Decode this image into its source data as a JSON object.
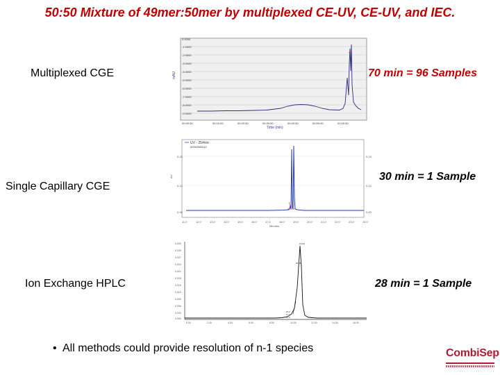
{
  "title": "50:50 Mixture of 49mer:50mer by multiplexed CE-UV, CE-UV, and IEC.",
  "methods": [
    {
      "label": "Multiplexed CGE",
      "rate": "70 min = 96 Samples",
      "rate_color": "#c00000"
    },
    {
      "label": "Single Capillary CGE",
      "rate": "30 min = 1 Sample",
      "rate_color": "#000000"
    },
    {
      "label": "Ion Exchange HPLC",
      "rate": "28 min = 1 Sample",
      "rate_color": "#000000"
    }
  ],
  "bullet": "All methods could provide resolution of n-1 species",
  "logo": {
    "text": "CombiSep"
  },
  "chart_data": [
    {
      "type": "line",
      "xlabel": "Time (min)",
      "ylabel": "mAU",
      "series": [
        {
          "values_shape": "flat baseline with broad hump, sharp peak cluster near end"
        }
      ]
    },
    {
      "type": "line",
      "xlabel": "Minutes",
      "ylabel": "AU",
      "legend": [
        "UV - 254nm"
      ],
      "x_ticks": [
        "11.0",
        "12.0",
        "13.0",
        "14.0",
        "15.0",
        "16.0",
        "17.0",
        "18.0",
        "19.0",
        "20.0",
        "21.0",
        "22.0",
        "23.0",
        "24.0"
      ],
      "series": [
        {
          "values_shape": "two tall narrow peaks near 19.4 min"
        }
      ]
    },
    {
      "type": "line",
      "ylabel": "",
      "series": [
        {
          "values_shape": "single tall peak with small shoulder near 20.5 min"
        }
      ]
    }
  ]
}
